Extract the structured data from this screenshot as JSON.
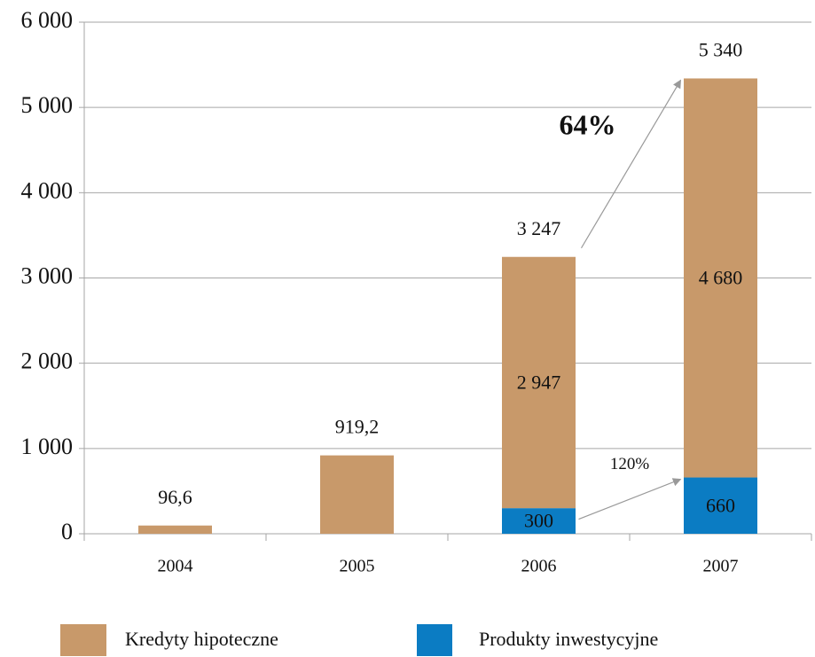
{
  "chart_data": {
    "type": "stacked_bar",
    "categories": [
      "2004",
      "2005",
      "2006",
      "2007"
    ],
    "series": [
      {
        "name": "Kredyty hipoteczne",
        "color": "#c8996a",
        "values": [
          96.6,
          919.2,
          2947,
          4680
        ],
        "value_labels": [
          null,
          null,
          "2 947",
          "4 680"
        ]
      },
      {
        "name": "Produkty inwestycyjne",
        "color": "#0b7cc3",
        "values": [
          null,
          null,
          300,
          660
        ]
      }
    ],
    "totals": {
      "values": [
        96.6,
        919.2,
        3247,
        5340
      ],
      "value_labels": [
        "96,6",
        "919,2",
        "3 247",
        "5 340"
      ]
    },
    "annotations": [
      {
        "text": "64%",
        "color": "#0b7cc3"
      },
      {
        "text": "120%",
        "color": "#0b7cc3"
      }
    ],
    "ylim": [
      0,
      6000
    ],
    "yticks": [
      0,
      {
        "value": 1000,
        "label": "1 000"
      },
      {
        "value": 2000,
        "label": "2 000"
      },
      {
        "value": 3000,
        "label": "3 000"
      },
      {
        "value": 4000,
        "label": "4 000"
      },
      {
        "value": 5000,
        "label": "5 000"
      },
      {
        "value": 6000,
        "label": "6 000"
      }
    ],
    "grid": true,
    "legend": "bottom"
  }
}
